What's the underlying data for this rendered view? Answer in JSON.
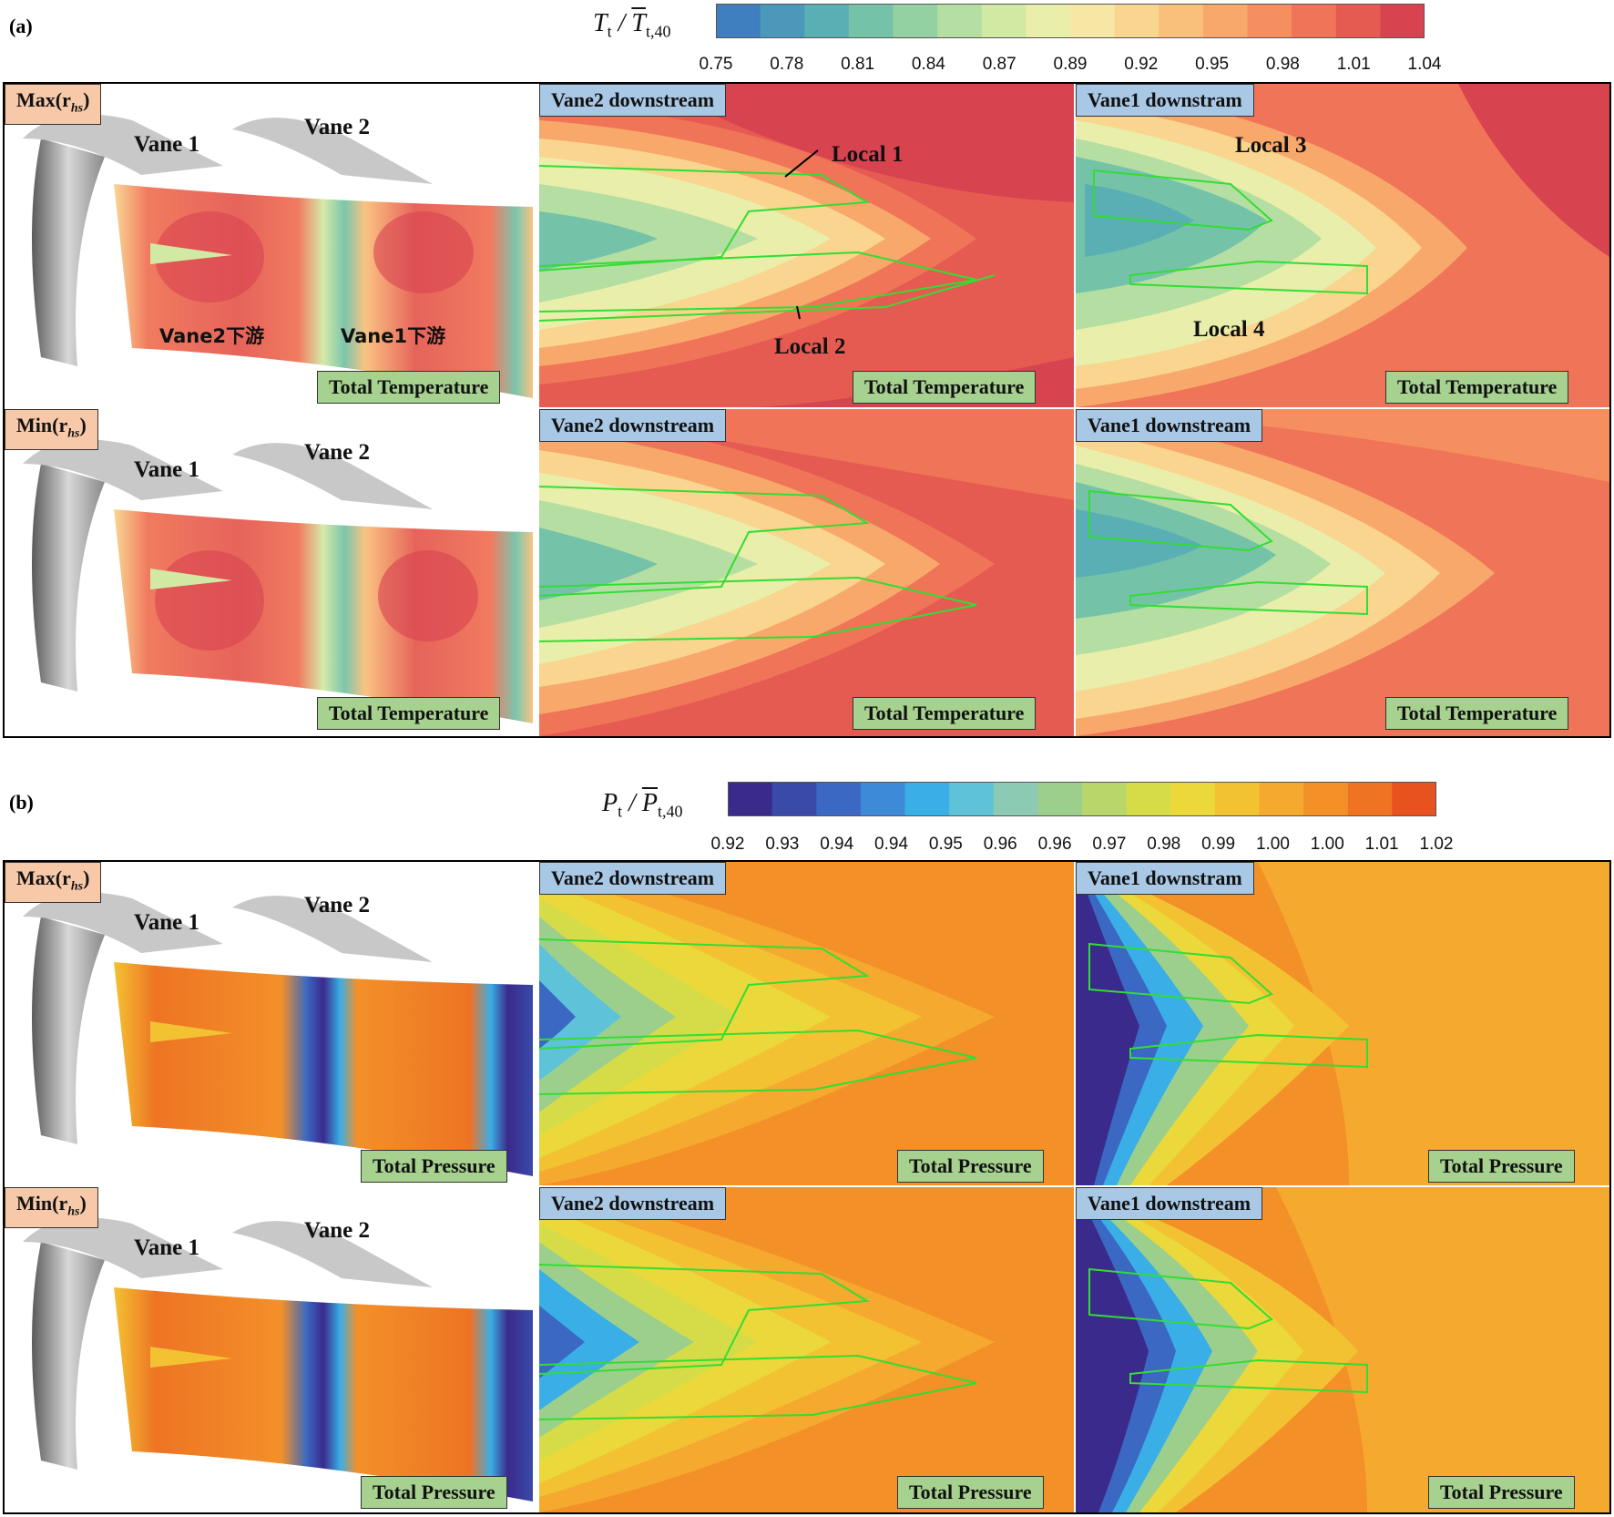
{
  "panel_a": {
    "label": "(a)",
    "colorbar": {
      "title_var": "T",
      "title_sub": "t",
      "title_bar_var": "T",
      "title_bar_sub": "t,40",
      "ticks": [
        "0.75",
        "0.78",
        "0.81",
        "0.84",
        "0.87",
        "0.89",
        "0.92",
        "0.95",
        "0.98",
        "1.01",
        "1.04"
      ],
      "colors": [
        "#3f7fbf",
        "#4c98bb",
        "#5aafb4",
        "#74c3a9",
        "#93d0a2",
        "#b4dea2",
        "#d2e9a4",
        "#e9eeaa",
        "#f6e7a4",
        "#f9d58f",
        "#f9c07b",
        "#f8a86b",
        "#f58f5f",
        "#f07457",
        "#e55b52",
        "#d84350"
      ]
    },
    "rows": [
      {
        "tag": "Max(r",
        "tag_sub": "hs",
        "tag_end": ")",
        "vane1": "Vane 1",
        "vane2": "Vane 2",
        "cn_vane2": "Vane2下游",
        "cn_vane1": "Vane1下游",
        "field": "Total Temperature",
        "mid_tag": "Vane2 downstream",
        "right_tag": "Vane1 downstram",
        "local1": "Local 1",
        "local2": "Local 2",
        "local3": "Local 3",
        "local4": "Local 4"
      },
      {
        "tag": "Min(r",
        "tag_sub": "hs",
        "tag_end": ")",
        "vane1": "Vane 1",
        "vane2": "Vane 2",
        "field": "Total Temperature",
        "mid_tag": "Vane2 downstream",
        "right_tag": "Vane1 downstream"
      }
    ]
  },
  "panel_b": {
    "label": "(b)",
    "colorbar": {
      "title_var": "P",
      "title_sub": "t",
      "title_bar_var": "P",
      "title_bar_sub": "t,40",
      "ticks": [
        "0.92",
        "0.93",
        "0.94",
        "0.94",
        "0.95",
        "0.96",
        "0.96",
        "0.97",
        "0.98",
        "0.99",
        "1.00",
        "1.00",
        "1.01",
        "1.02"
      ],
      "colors": [
        "#3a2a8c",
        "#3a4aa8",
        "#3a68c2",
        "#3c8ad8",
        "#3aaee6",
        "#5ec3d8",
        "#8ccab4",
        "#9ccf8c",
        "#b8d66a",
        "#d6dc48",
        "#ebd83a",
        "#f3c233",
        "#f5a92e",
        "#f39028",
        "#ee7424",
        "#e8521e"
      ]
    },
    "rows": [
      {
        "tag": "Max(r",
        "tag_sub": "hs",
        "tag_end": ")",
        "vane1": "Vane 1",
        "vane2": "Vane 2",
        "field": "Total Pressure",
        "mid_tag": "Vane2 downstream",
        "right_tag": "Vane1 downstram"
      },
      {
        "tag": "Min(r",
        "tag_sub": "hs",
        "tag_end": ")",
        "vane1": "Vane 1",
        "vane2": "Vane 2",
        "field": "Total Pressure",
        "mid_tag": "Vane2 downstream",
        "right_tag": "Vane1 downstream"
      }
    ]
  }
}
